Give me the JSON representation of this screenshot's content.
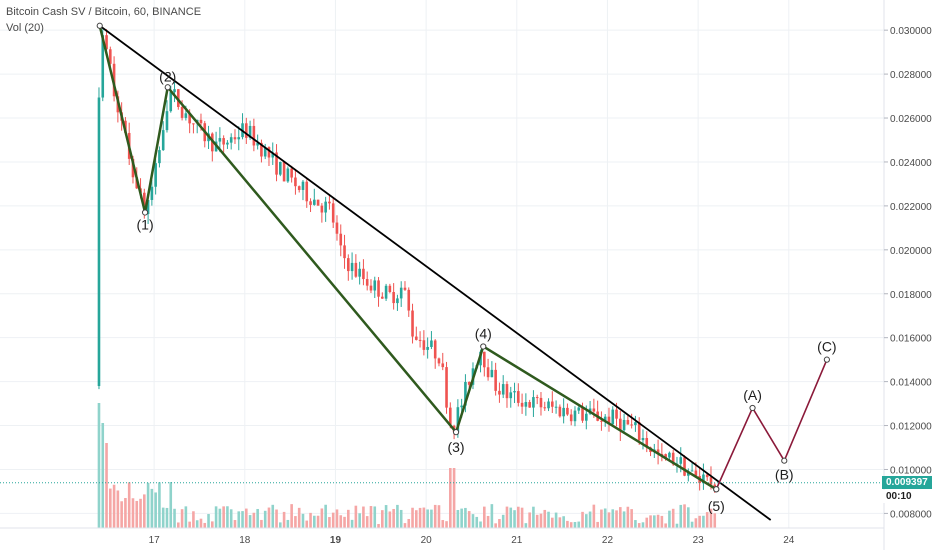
{
  "header": {
    "symbol_line": "Bitcoin Cash SV / Bitcoin, 60, BINANCE",
    "volume_line": "Vol (20)"
  },
  "current_price": {
    "value": "0.009397",
    "countdown": "00:10",
    "color": "#26a69a"
  },
  "colors": {
    "up": "#26a69a",
    "down": "#ef5350",
    "up_volume": "#8fd3cb",
    "down_volume": "#f5a6a5",
    "wave": "#2f5a1e",
    "projection": "#8b1a3a",
    "trendline": "#000000",
    "grid": "#eef1f4"
  },
  "chart_data": {
    "type": "candlestick",
    "title": "Bitcoin Cash SV / Bitcoin, 60, BINANCE",
    "x_ticks": [
      "17",
      "18",
      "19",
      "20",
      "21",
      "22",
      "23",
      "24"
    ],
    "x_tick_values": [
      17,
      18,
      19,
      20,
      21,
      22,
      23,
      24
    ],
    "xlim": [
      15.3,
      25.05
    ],
    "y_ticks": [
      "0.008000",
      "0.010000",
      "0.012000",
      "0.014000",
      "0.016000",
      "0.018000",
      "0.020000",
      "0.022000",
      "0.024000",
      "0.026000",
      "0.028000",
      "0.030000"
    ],
    "ylim": [
      0.0077,
      0.0311
    ],
    "price_path": [
      [
        16.35,
        0.0138
      ],
      [
        16.4,
        0.0301
      ],
      [
        16.5,
        0.0285
      ],
      [
        16.6,
        0.0266
      ],
      [
        16.7,
        0.0247
      ],
      [
        16.8,
        0.0232
      ],
      [
        16.9,
        0.0217
      ],
      [
        17.0,
        0.0231
      ],
      [
        17.1,
        0.0258
      ],
      [
        17.17,
        0.0273
      ],
      [
        17.3,
        0.0265
      ],
      [
        17.5,
        0.0254
      ],
      [
        17.7,
        0.0247
      ],
      [
        17.9,
        0.0252
      ],
      [
        18.0,
        0.0255
      ],
      [
        18.2,
        0.0246
      ],
      [
        18.4,
        0.0236
      ],
      [
        18.6,
        0.0228
      ],
      [
        18.8,
        0.0222
      ],
      [
        18.95,
        0.0218
      ],
      [
        19.05,
        0.0199
      ],
      [
        19.2,
        0.0191
      ],
      [
        19.4,
        0.0184
      ],
      [
        19.6,
        0.0179
      ],
      [
        19.75,
        0.0183
      ],
      [
        19.85,
        0.0163
      ],
      [
        20.0,
        0.0157
      ],
      [
        20.15,
        0.0152
      ],
      [
        20.28,
        0.0118
      ],
      [
        20.4,
        0.0131
      ],
      [
        20.5,
        0.0145
      ],
      [
        20.6,
        0.0155
      ],
      [
        20.75,
        0.0139
      ],
      [
        20.9,
        0.0134
      ],
      [
        21.1,
        0.0131
      ],
      [
        21.3,
        0.0129
      ],
      [
        21.5,
        0.0127
      ],
      [
        21.7,
        0.0125
      ],
      [
        21.9,
        0.0124
      ],
      [
        22.1,
        0.0123
      ],
      [
        22.3,
        0.0118
      ],
      [
        22.45,
        0.0111
      ],
      [
        22.6,
        0.0104
      ],
      [
        22.75,
        0.0105
      ],
      [
        22.9,
        0.0099
      ],
      [
        23.0,
        0.0095
      ],
      [
        23.1,
        0.0093
      ],
      [
        23.2,
        0.0094
      ]
    ],
    "wave_points": [
      {
        "label": "",
        "x": 16.4,
        "y": 0.0302
      },
      {
        "label": "(1)",
        "x": 16.9,
        "y": 0.0217
      },
      {
        "label": "(2)",
        "x": 17.15,
        "y": 0.0274
      },
      {
        "label": "(3)",
        "x": 20.33,
        "y": 0.0117
      },
      {
        "label": "(4)",
        "x": 20.63,
        "y": 0.0156
      },
      {
        "label": "(5)",
        "x": 23.2,
        "y": 0.0091
      }
    ],
    "projection_points": [
      {
        "label": "",
        "x": 23.2,
        "y": 0.0091
      },
      {
        "label": "(A)",
        "x": 23.6,
        "y": 0.0128
      },
      {
        "label": "(B)",
        "x": 23.95,
        "y": 0.0104
      },
      {
        "label": "(C)",
        "x": 24.42,
        "y": 0.015
      }
    ],
    "trendline": [
      [
        16.4,
        0.0302
      ],
      [
        23.8,
        0.0077
      ]
    ],
    "current_price_value": 0.009397,
    "volume_peak_ratio": [
      0.95,
      0.3,
      0.12,
      0.2
    ]
  }
}
